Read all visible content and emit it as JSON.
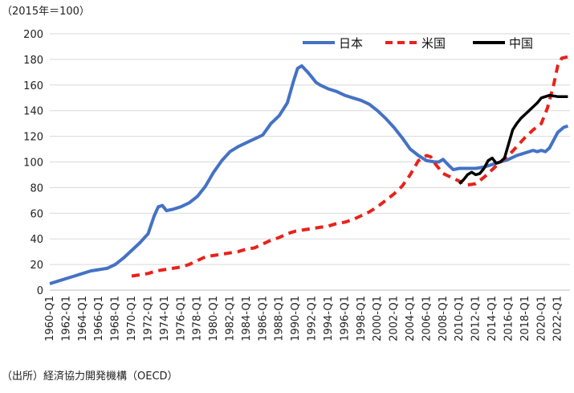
{
  "chart_data": {
    "type": "line",
    "unit_note": "（2015年＝100）",
    "source_note": "（出所）経済協力開発機構（OECD）",
    "ylim": [
      0,
      200
    ],
    "y_ticks": [
      0,
      20,
      40,
      60,
      80,
      100,
      120,
      140,
      160,
      180,
      200
    ],
    "x_range": [
      1960.0,
      2023.5
    ],
    "x_tick_labels": [
      "1960-Q1",
      "1962-Q1",
      "1964-Q1",
      "1966-Q1",
      "1968-Q1",
      "1970-Q1",
      "1972-Q1",
      "1974-Q1",
      "1976-Q1",
      "1978-Q1",
      "1980-Q1",
      "1982-Q1",
      "1984-Q1",
      "1986-Q1",
      "1988-Q1",
      "1990-Q1",
      "1992-Q1",
      "1994-Q1",
      "1996-Q1",
      "1998-Q1",
      "2000-Q1",
      "2002-Q1",
      "2004-Q1",
      "2006-Q1",
      "2008-Q1",
      "2010-Q1",
      "2012-Q1",
      "2014-Q1",
      "2016-Q1",
      "2018-Q1",
      "2020-Q1",
      "2022-Q1"
    ],
    "grid": "horizontal",
    "legend_position": "top-right",
    "series": [
      {
        "name": "日本",
        "color": "#4472c4",
        "style": "solid",
        "points": [
          [
            1960,
            5
          ],
          [
            1961,
            7
          ],
          [
            1962,
            9
          ],
          [
            1963,
            11
          ],
          [
            1964,
            13
          ],
          [
            1965,
            15
          ],
          [
            1966,
            16
          ],
          [
            1967,
            17
          ],
          [
            1968,
            20
          ],
          [
            1969,
            25
          ],
          [
            1970,
            31
          ],
          [
            1971,
            37
          ],
          [
            1972,
            44
          ],
          [
            1972.75,
            58
          ],
          [
            1973.25,
            65
          ],
          [
            1973.75,
            66
          ],
          [
            1974.25,
            62
          ],
          [
            1975,
            63
          ],
          [
            1976,
            65
          ],
          [
            1977,
            68
          ],
          [
            1978,
            73
          ],
          [
            1979,
            81
          ],
          [
            1980,
            92
          ],
          [
            1981,
            101
          ],
          [
            1982,
            108
          ],
          [
            1983,
            112
          ],
          [
            1984,
            115
          ],
          [
            1985,
            118
          ],
          [
            1986,
            121
          ],
          [
            1987,
            130
          ],
          [
            1988,
            136
          ],
          [
            1989,
            146
          ],
          [
            1989.75,
            163
          ],
          [
            1990.25,
            173
          ],
          [
            1990.75,
            175
          ],
          [
            1991.5,
            170
          ],
          [
            1992,
            166
          ],
          [
            1992.5,
            162
          ],
          [
            1993,
            160
          ],
          [
            1994,
            157
          ],
          [
            1995,
            155
          ],
          [
            1996,
            152
          ],
          [
            1997,
            150
          ],
          [
            1998,
            148
          ],
          [
            1999,
            145
          ],
          [
            2000,
            140
          ],
          [
            2001,
            134
          ],
          [
            2002,
            127
          ],
          [
            2003,
            119
          ],
          [
            2004,
            110
          ],
          [
            2005,
            105
          ],
          [
            2006,
            101
          ],
          [
            2007,
            100
          ],
          [
            2007.5,
            100
          ],
          [
            2008,
            102
          ],
          [
            2008.75,
            97
          ],
          [
            2009.25,
            94
          ],
          [
            2010,
            95
          ],
          [
            2011,
            95
          ],
          [
            2012,
            95
          ],
          [
            2013,
            96
          ],
          [
            2014,
            98
          ],
          [
            2015,
            100
          ],
          [
            2016,
            102
          ],
          [
            2017,
            105
          ],
          [
            2018,
            107
          ],
          [
            2019,
            109
          ],
          [
            2019.5,
            108
          ],
          [
            2020,
            109
          ],
          [
            2020.5,
            108
          ],
          [
            2021,
            111
          ],
          [
            2021.5,
            117
          ],
          [
            2022,
            123
          ],
          [
            2022.75,
            127
          ],
          [
            2023.25,
            128
          ]
        ]
      },
      {
        "name": "米国",
        "color": "#e8221b",
        "style": "dashed",
        "points": [
          [
            1970,
            11
          ],
          [
            1971,
            12
          ],
          [
            1972,
            13
          ],
          [
            1973,
            15
          ],
          [
            1974,
            16
          ],
          [
            1975,
            17
          ],
          [
            1976,
            18
          ],
          [
            1977,
            20
          ],
          [
            1978,
            23
          ],
          [
            1979,
            26
          ],
          [
            1980,
            27
          ],
          [
            1981,
            28
          ],
          [
            1982,
            29
          ],
          [
            1983,
            30
          ],
          [
            1984,
            32
          ],
          [
            1985,
            33
          ],
          [
            1986,
            36
          ],
          [
            1987,
            39
          ],
          [
            1988,
            41
          ],
          [
            1989,
            44
          ],
          [
            1990,
            46
          ],
          [
            1991,
            47
          ],
          [
            1992,
            48
          ],
          [
            1993,
            49
          ],
          [
            1994,
            50
          ],
          [
            1995,
            52
          ],
          [
            1996,
            53
          ],
          [
            1997,
            55
          ],
          [
            1998,
            58
          ],
          [
            1999,
            61
          ],
          [
            2000,
            65
          ],
          [
            2001,
            70
          ],
          [
            2002,
            75
          ],
          [
            2003,
            81
          ],
          [
            2004,
            90
          ],
          [
            2005,
            101
          ],
          [
            2006,
            105
          ],
          [
            2006.5,
            104
          ],
          [
            2007,
            99
          ],
          [
            2008,
            91
          ],
          [
            2009,
            88
          ],
          [
            2010,
            85
          ],
          [
            2011,
            82
          ],
          [
            2012,
            83
          ],
          [
            2013,
            88
          ],
          [
            2014,
            94
          ],
          [
            2015,
            100
          ],
          [
            2016,
            105
          ],
          [
            2017,
            112
          ],
          [
            2018,
            119
          ],
          [
            2019,
            125
          ],
          [
            2020,
            130
          ],
          [
            2020.75,
            142
          ],
          [
            2021.5,
            160
          ],
          [
            2022,
            175
          ],
          [
            2022.5,
            181
          ],
          [
            2023.25,
            182
          ]
        ]
      },
      {
        "name": "中国",
        "color": "#000000",
        "style": "solid",
        "points": [
          [
            2010,
            83
          ],
          [
            2010.5,
            86
          ],
          [
            2011,
            90
          ],
          [
            2011.5,
            92
          ],
          [
            2012,
            90
          ],
          [
            2012.5,
            91
          ],
          [
            2013,
            95
          ],
          [
            2013.5,
            101
          ],
          [
            2014,
            103
          ],
          [
            2014.5,
            99
          ],
          [
            2015,
            100
          ],
          [
            2015.5,
            103
          ],
          [
            2016,
            114
          ],
          [
            2016.5,
            125
          ],
          [
            2017,
            130
          ],
          [
            2017.5,
            134
          ],
          [
            2018,
            137
          ],
          [
            2018.5,
            140
          ],
          [
            2019,
            143
          ],
          [
            2019.5,
            146
          ],
          [
            2020,
            150
          ],
          [
            2020.5,
            151
          ],
          [
            2021,
            152
          ],
          [
            2022,
            151
          ],
          [
            2023.25,
            151
          ]
        ]
      }
    ]
  }
}
